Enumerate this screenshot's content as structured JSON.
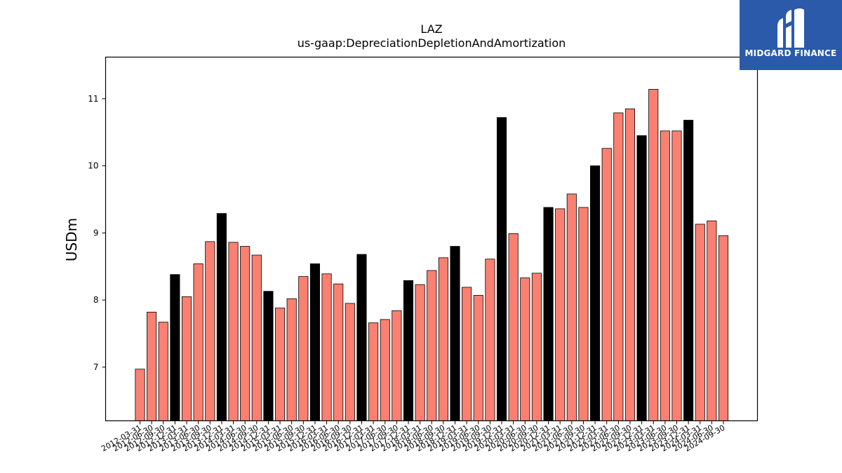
{
  "header": {
    "title": "LAZ",
    "subtitle": "us-gaap:DepreciationDepletionAndAmortization"
  },
  "logo": {
    "text": "MIDGARD FINANCE",
    "icon": "midgard-logo-icon",
    "background": "#2b5aab"
  },
  "colors": {
    "quarter_bar": "#fa8072",
    "annual_bar": "#000000"
  },
  "chart_data": {
    "type": "bar",
    "title": "LAZ",
    "subtitle": "us-gaap:DepreciationDepletionAndAmortization",
    "xlabel": "",
    "ylabel": "USDm",
    "ylim": [
      6.2,
      11.62
    ],
    "yticks": [
      7,
      8,
      9,
      10,
      11
    ],
    "grid": false,
    "categories": [
      "2012-03-31",
      "2012-06-30",
      "2012-09-30",
      "2012-12-31",
      "2013-03-31",
      "2013-06-30",
      "2013-09-30",
      "2013-12-31",
      "2014-03-31",
      "2014-06-30",
      "2014-09-30",
      "2014-12-31",
      "2015-03-31",
      "2015-06-30",
      "2015-09-30",
      "2015-12-31",
      "2016-03-31",
      "2016-06-30",
      "2016-09-30",
      "2016-12-31",
      "2017-03-31",
      "2017-06-30",
      "2017-09-30",
      "2017-12-31",
      "2018-03-31",
      "2018-06-30",
      "2018-09-30",
      "2018-12-31",
      "2019-03-31",
      "2019-06-30",
      "2019-09-30",
      "2019-12-31",
      "2020-03-31",
      "2020-06-30",
      "2020-09-30",
      "2020-12-31",
      "2021-03-31",
      "2021-06-30",
      "2021-09-30",
      "2021-12-31",
      "2022-03-31",
      "2022-06-30",
      "2022-09-30",
      "2022-12-31",
      "2023-03-31",
      "2023-06-30",
      "2023-09-30",
      "2023-12-31",
      "2024-03-31",
      "2024-06-30",
      "2024-09-30"
    ],
    "values": [
      6.97,
      7.82,
      7.67,
      8.38,
      8.05,
      8.54,
      8.87,
      9.29,
      8.86,
      8.8,
      8.67,
      8.13,
      7.88,
      8.02,
      8.35,
      8.54,
      8.39,
      8.24,
      7.95,
      8.68,
      7.66,
      7.71,
      7.84,
      8.29,
      8.23,
      8.44,
      8.63,
      8.8,
      8.19,
      8.07,
      8.61,
      10.72,
      8.99,
      8.33,
      8.4,
      9.38,
      9.36,
      9.58,
      9.38,
      10.0,
      10.26,
      10.79,
      10.85,
      10.45,
      11.14,
      10.52,
      10.52,
      10.68,
      9.13,
      9.18,
      8.96
    ],
    "series_kind": [
      "Q",
      "Q",
      "Q",
      "FY",
      "Q",
      "Q",
      "Q",
      "FY",
      "Q",
      "Q",
      "Q",
      "FY",
      "Q",
      "Q",
      "Q",
      "FY",
      "Q",
      "Q",
      "Q",
      "FY",
      "Q",
      "Q",
      "Q",
      "FY",
      "Q",
      "Q",
      "Q",
      "FY",
      "Q",
      "Q",
      "Q",
      "FY",
      "Q",
      "Q",
      "Q",
      "FY",
      "Q",
      "Q",
      "Q",
      "FY",
      "Q",
      "Q",
      "Q",
      "FY",
      "Q",
      "Q",
      "Q",
      "FY",
      "Q",
      "Q",
      "Q"
    ]
  }
}
